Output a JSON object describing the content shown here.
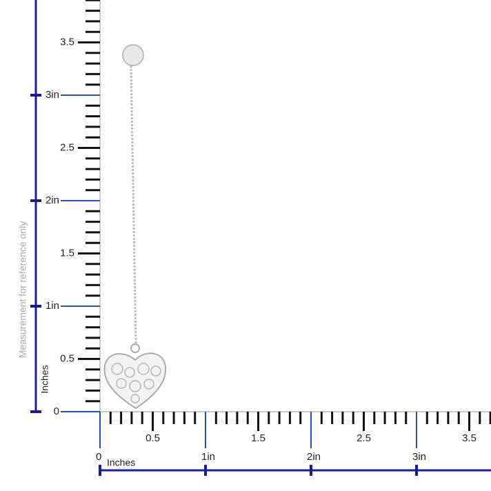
{
  "vertical_ruler": {
    "labels": [
      "3.5",
      "3in",
      "2.5",
      "2in",
      "1.5",
      "1in",
      "0.5",
      "0"
    ],
    "unit": "Inches"
  },
  "horizontal_ruler": {
    "labels": [
      "0.5",
      "1.5",
      "2.5",
      "3.5"
    ],
    "inch_labels": [
      "0",
      "1in",
      "2in",
      "3in"
    ],
    "unit": "Inches"
  },
  "note": "Measurement for reference only"
}
